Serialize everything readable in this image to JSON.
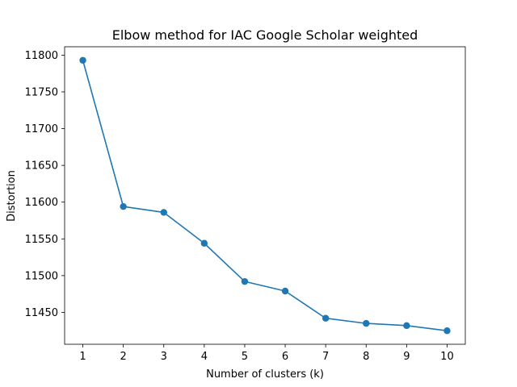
{
  "chart_data": {
    "type": "line",
    "title": "Elbow method for IAC Google Scholar weighted",
    "xlabel": "Number of clusters (k)",
    "ylabel": "Distortion",
    "x": [
      1,
      2,
      3,
      4,
      5,
      6,
      7,
      8,
      9,
      10
    ],
    "series": [
      {
        "values": [
          11793,
          11594,
          11586,
          11544,
          11492,
          11479,
          11442,
          11435,
          11432,
          11425
        ]
      }
    ],
    "xticks": [
      1,
      2,
      3,
      4,
      5,
      6,
      7,
      8,
      9,
      10
    ],
    "yticks": [
      11450,
      11500,
      11550,
      11600,
      11650,
      11700,
      11750,
      11800
    ],
    "xlim": [
      0.55,
      10.45
    ],
    "ylim": [
      11406.6,
      11811.4
    ],
    "grid": false,
    "marker": "circle",
    "colors": {
      "line": "#1f77b4",
      "axes": "#000000",
      "background": "#ffffff"
    }
  }
}
